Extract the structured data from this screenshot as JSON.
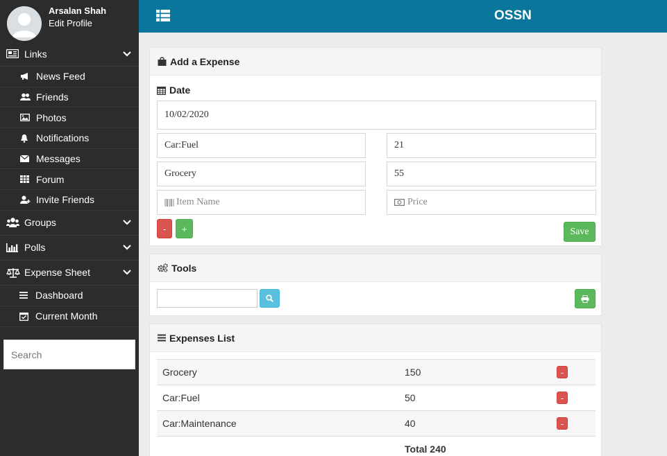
{
  "profile": {
    "name": "Arsalan Shah",
    "edit_label": "Edit Profile"
  },
  "sidebar": {
    "links": {
      "label": "Links",
      "items": [
        "News Feed",
        "Friends",
        "Photos",
        "Notifications",
        "Messages",
        "Forum",
        "Invite Friends"
      ]
    },
    "groups": {
      "label": "Groups"
    },
    "polls": {
      "label": "Polls"
    },
    "expense_sheet": {
      "label": "Expense Sheet",
      "items": [
        "Dashboard",
        "Current Month"
      ]
    },
    "search_placeholder": "Search"
  },
  "topbar": {
    "brand": "OSSN"
  },
  "add_expense": {
    "title": "Add a Expense",
    "date_label": "Date",
    "date_value": "10/02/2020",
    "rows": [
      {
        "item": "Car:Fuel",
        "price": "21"
      },
      {
        "item": "Grocery",
        "price": "55"
      }
    ],
    "item_placeholder": "Item Name",
    "price_placeholder": "Price",
    "remove_label": "-",
    "add_label": "+",
    "save_label": "Save"
  },
  "tools": {
    "title": "Tools"
  },
  "expenses_list": {
    "title": "Expenses List",
    "rows": [
      {
        "name": "Grocery",
        "amount": "150",
        "delete_label": "-"
      },
      {
        "name": "Car:Fuel",
        "amount": "50",
        "delete_label": "-"
      },
      {
        "name": "Car:Maintenance",
        "amount": "40",
        "delete_label": "-"
      }
    ],
    "total": "Total 240"
  },
  "colors": {
    "sidebar_bg": "#2c2c2c",
    "topbar_bg": "#0b769c",
    "danger": "#d9534f",
    "success": "#5cb85c",
    "info": "#5bc0de"
  }
}
